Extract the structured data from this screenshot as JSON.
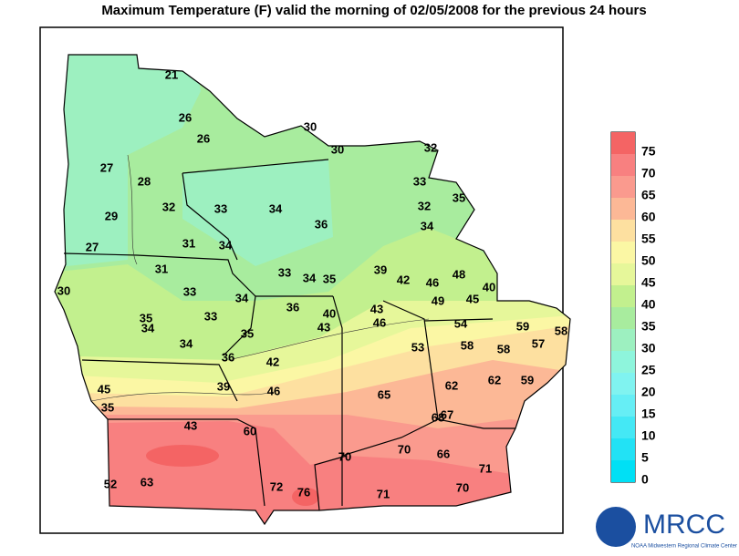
{
  "title": "Maximum Temperature (F) valid the morning of   02/05/2008  for the previous 24 hours",
  "stations": [
    21,
    26,
    26,
    30,
    30,
    32,
    27,
    28,
    33,
    35,
    32,
    33,
    34,
    36,
    32,
    34,
    29,
    31,
    34,
    27,
    31,
    39,
    42,
    46,
    48,
    30,
    33,
    33,
    34,
    35,
    49,
    45,
    40,
    34,
    36,
    43,
    40,
    35,
    34,
    33,
    43,
    46,
    54,
    59,
    58,
    35,
    34,
    53,
    58,
    58,
    57,
    36,
    42,
    62,
    59,
    45,
    39,
    46,
    65,
    62,
    35,
    43,
    60,
    68,
    67,
    70,
    70,
    66,
    71,
    52,
    63,
    72,
    76,
    71,
    70
  ],
  "legend": {
    "labels": [
      75,
      70,
      65,
      60,
      55,
      50,
      45,
      40,
      35,
      30,
      25,
      20,
      15,
      10,
      5,
      0
    ],
    "colors": [
      "#f46464",
      "#f88080",
      "#fa9a8e",
      "#fcb896",
      "#fde0a0",
      "#fbf7a4",
      "#e6f79a",
      "#c2f08e",
      "#a8ec9e",
      "#9df0c0",
      "#8ef5dc",
      "#80f3f0",
      "#66eef5",
      "#44e8f5",
      "#22e2f5",
      "#00e0f5"
    ]
  },
  "logo": {
    "name": "MRCC",
    "subtitle": "NOAA Midwestern Regional Climate Center"
  }
}
